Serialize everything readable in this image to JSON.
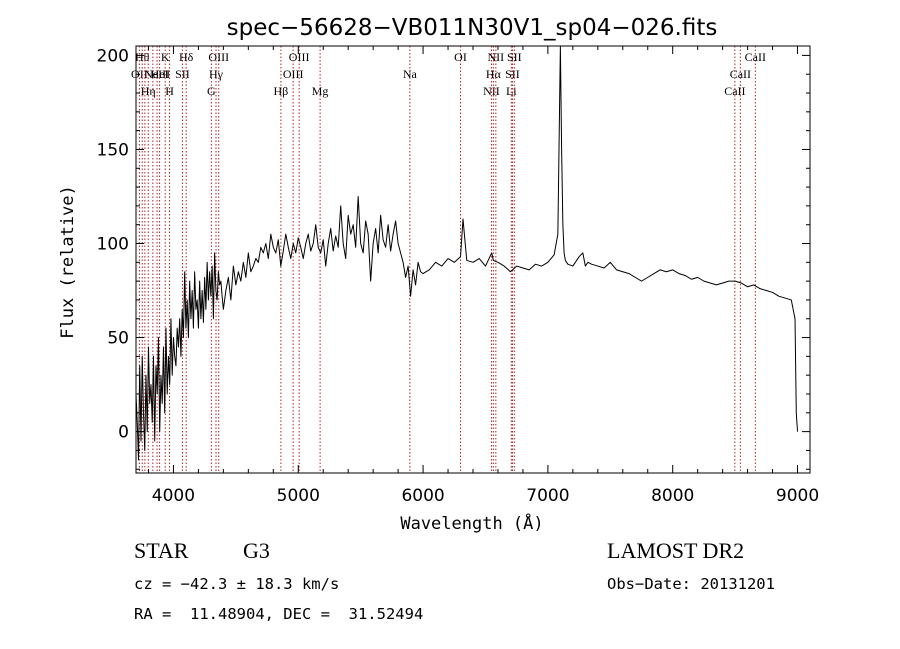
{
  "chart_data": {
    "type": "line",
    "title": "spec−56628−VB011N30V1_sp04−026.fits",
    "xlabel": "Wavelength (Å)",
    "ylabel": "Flux (relative)",
    "xlim": [
      3700,
      9100
    ],
    "ylim": [
      -22,
      205
    ],
    "grid": false,
    "x_ticks": [
      {
        "value": 4000,
        "label": "4000"
      },
      {
        "value": 5000,
        "label": "5000"
      },
      {
        "value": 6000,
        "label": "6000"
      },
      {
        "value": 7000,
        "label": "7000"
      },
      {
        "value": 8000,
        "label": "8000"
      },
      {
        "value": 9000,
        "label": "9000"
      }
    ],
    "y_ticks": [
      {
        "value": 0,
        "label": "0"
      },
      {
        "value": 50,
        "label": "50"
      },
      {
        "value": 100,
        "label": "100"
      },
      {
        "value": 150,
        "label": "150"
      },
      {
        "value": 200,
        "label": "200"
      }
    ],
    "series": [
      {
        "x": [
          3700,
          3710,
          3720,
          3730,
          3740,
          3750,
          3760,
          3770,
          3780,
          3790,
          3800,
          3810,
          3820,
          3830,
          3840,
          3850,
          3860,
          3870,
          3880,
          3890,
          3900,
          3910,
          3920,
          3930,
          3940,
          3950,
          3960,
          3970,
          3980,
          3990,
          4000,
          4010,
          4020,
          4030,
          4040,
          4050,
          4060,
          4070,
          4080,
          4090,
          4100,
          4110,
          4120,
          4130,
          4140,
          4150,
          4160,
          4170,
          4180,
          4190,
          4200,
          4210,
          4220,
          4230,
          4240,
          4250,
          4260,
          4270,
          4280,
          4290,
          4300,
          4310,
          4320,
          4330,
          4340,
          4350,
          4360,
          4370,
          4380,
          4390,
          4400,
          4420,
          4440,
          4460,
          4480,
          4500,
          4520,
          4540,
          4560,
          4580,
          4600,
          4620,
          4640,
          4660,
          4680,
          4700,
          4720,
          4740,
          4760,
          4780,
          4800,
          4820,
          4840,
          4860,
          4880,
          4900,
          4920,
          4940,
          4960,
          4980,
          5000,
          5020,
          5040,
          5060,
          5080,
          5100,
          5120,
          5140,
          5160,
          5180,
          5200,
          5220,
          5240,
          5260,
          5280,
          5300,
          5320,
          5340,
          5360,
          5380,
          5400,
          5420,
          5440,
          5460,
          5480,
          5500,
          5520,
          5540,
          5560,
          5580,
          5600,
          5620,
          5640,
          5660,
          5680,
          5700,
          5720,
          5740,
          5760,
          5780,
          5800,
          5820,
          5840,
          5860,
          5880,
          5900,
          5920,
          5940,
          5960,
          5980,
          6000,
          6050,
          6100,
          6150,
          6200,
          6250,
          6300,
          6320,
          6350,
          6400,
          6450,
          6500,
          6550,
          6563,
          6600,
          6650,
          6700,
          6750,
          6800,
          6850,
          6900,
          6950,
          7000,
          7050,
          7080,
          7100,
          7110,
          7120,
          7130,
          7140,
          7160,
          7200,
          7250,
          7280,
          7300,
          7320,
          7350,
          7400,
          7450,
          7500,
          7550,
          7600,
          7650,
          7700,
          7750,
          7800,
          7850,
          7900,
          7950,
          8000,
          8050,
          8100,
          8150,
          8200,
          8250,
          8300,
          8350,
          8400,
          8450,
          8500,
          8550,
          8600,
          8650,
          8700,
          8750,
          8800,
          8850,
          8900,
          8950,
          8980,
          8990,
          9000
        ],
        "y": [
          20,
          5,
          -15,
          35,
          -5,
          40,
          10,
          -10,
          30,
          0,
          45,
          15,
          25,
          5,
          40,
          -5,
          35,
          20,
          50,
          0,
          30,
          15,
          45,
          10,
          55,
          20,
          40,
          25,
          60,
          30,
          50,
          40,
          35,
          55,
          45,
          60,
          40,
          65,
          50,
          85,
          55,
          70,
          50,
          80,
          60,
          75,
          55,
          85,
          65,
          70,
          55,
          80,
          60,
          75,
          58,
          82,
          65,
          90,
          70,
          85,
          72,
          88,
          60,
          95,
          75,
          70,
          85,
          78,
          80,
          72,
          65,
          75,
          82,
          70,
          88,
          78,
          85,
          80,
          90,
          82,
          95,
          85,
          88,
          92,
          90,
          98,
          95,
          100,
          92,
          105,
          98,
          95,
          102,
          88,
          96,
          105,
          98,
          92,
          100,
          95,
          103,
          98,
          92,
          100,
          105,
          96,
          100,
          110,
          98,
          95,
          102,
          88,
          100,
          108,
          96,
          104,
          98,
          120,
          100,
          92,
          115,
          105,
          110,
          98,
          125,
          100,
          95,
          112,
          105,
          80,
          100,
          108,
          95,
          115,
          102,
          98,
          110,
          96,
          105,
          112,
          100,
          95,
          90,
          82,
          88,
          72,
          86,
          78,
          90,
          85,
          84,
          86,
          90,
          88,
          92,
          90,
          93,
          113,
          91,
          90,
          92,
          88,
          95,
          91,
          90,
          88,
          85,
          88,
          87,
          86,
          89,
          88,
          90,
          94,
          105,
          205,
          150,
          110,
          95,
          91,
          89,
          88,
          93,
          95,
          88,
          90,
          89,
          88,
          87,
          90,
          86,
          85,
          84,
          82,
          80,
          82,
          84,
          86,
          85,
          86,
          84,
          83,
          81,
          82,
          80,
          79,
          78,
          79,
          80,
          80,
          79,
          77,
          78,
          76,
          75,
          74,
          72,
          71,
          70,
          60,
          10,
          0
        ]
      }
    ],
    "lines": [
      {
        "x": 3727,
        "labels": [
          "OII"
        ],
        "rows": [
          1
        ]
      },
      {
        "x": 3750,
        "labels": [
          "Hθ"
        ],
        "rows": [
          0
        ]
      },
      {
        "x": 3771,
        "labels": [],
        "rows": []
      },
      {
        "x": 3798,
        "labels": [
          "Hη"
        ],
        "rows": [
          2
        ]
      },
      {
        "x": 3835,
        "labels": [],
        "rows": []
      },
      {
        "x": 3869,
        "labels": [
          "NeIII"
        ],
        "rows": [
          1
        ]
      },
      {
        "x": 3889,
        "labels": [
          "HeI"
        ],
        "rows": [
          1
        ]
      },
      {
        "x": 3934,
        "labels": [
          "K"
        ],
        "rows": [
          0
        ]
      },
      {
        "x": 3969,
        "labels": [
          "H"
        ],
        "rows": [
          2
        ]
      },
      {
        "x": 4072,
        "labels": [
          "SII"
        ],
        "rows": [
          1
        ]
      },
      {
        "x": 4102,
        "labels": [
          "Hδ"
        ],
        "rows": [
          0
        ]
      },
      {
        "x": 4304,
        "labels": [
          "G"
        ],
        "rows": [
          2
        ]
      },
      {
        "x": 4341,
        "labels": [
          "Hγ"
        ],
        "rows": [
          1
        ]
      },
      {
        "x": 4363,
        "labels": [
          "OIII"
        ],
        "rows": [
          0
        ]
      },
      {
        "x": 4861,
        "labels": [
          "Hβ"
        ],
        "rows": [
          2
        ]
      },
      {
        "x": 4959,
        "labels": [
          "OIII"
        ],
        "rows": [
          1
        ]
      },
      {
        "x": 5007,
        "labels": [
          "OIII"
        ],
        "rows": [
          0
        ]
      },
      {
        "x": 5175,
        "labels": [
          "Mg"
        ],
        "rows": [
          2
        ]
      },
      {
        "x": 5894,
        "labels": [
          "Na"
        ],
        "rows": [
          1
        ]
      },
      {
        "x": 6300,
        "labels": [
          "OI"
        ],
        "rows": [
          0
        ]
      },
      {
        "x": 6548,
        "labels": [
          "NII"
        ],
        "rows": [
          2
        ]
      },
      {
        "x": 6563,
        "labels": [
          "Hα"
        ],
        "rows": [
          1
        ]
      },
      {
        "x": 6583,
        "labels": [
          "NII"
        ],
        "rows": [
          0
        ]
      },
      {
        "x": 6707,
        "labels": [
          "Li"
        ],
        "rows": [
          2
        ]
      },
      {
        "x": 6716,
        "labels": [
          "SII"
        ],
        "rows": [
          1
        ]
      },
      {
        "x": 6731,
        "labels": [
          "SII"
        ],
        "rows": [
          0
        ]
      },
      {
        "x": 8498,
        "labels": [
          "CaII"
        ],
        "rows": [
          2
        ]
      },
      {
        "x": 8542,
        "labels": [
          "CaII"
        ],
        "rows": [
          1
        ]
      },
      {
        "x": 8662,
        "labels": [
          "CaII"
        ],
        "rows": [
          0
        ]
      }
    ]
  },
  "info": {
    "class_label": "STAR",
    "subclass_label": "G3",
    "survey_label": "LAMOST DR2",
    "redshift_line": "cz = −42.3 ± 18.3 km/s",
    "obs_date_line": "Obs−Date: 20131201",
    "coords_line": "RA =  11.48904, DEC =  31.52494"
  },
  "colors": {
    "spectrum": "#000000",
    "line_markers": "#b22222",
    "axes": "#000000"
  }
}
